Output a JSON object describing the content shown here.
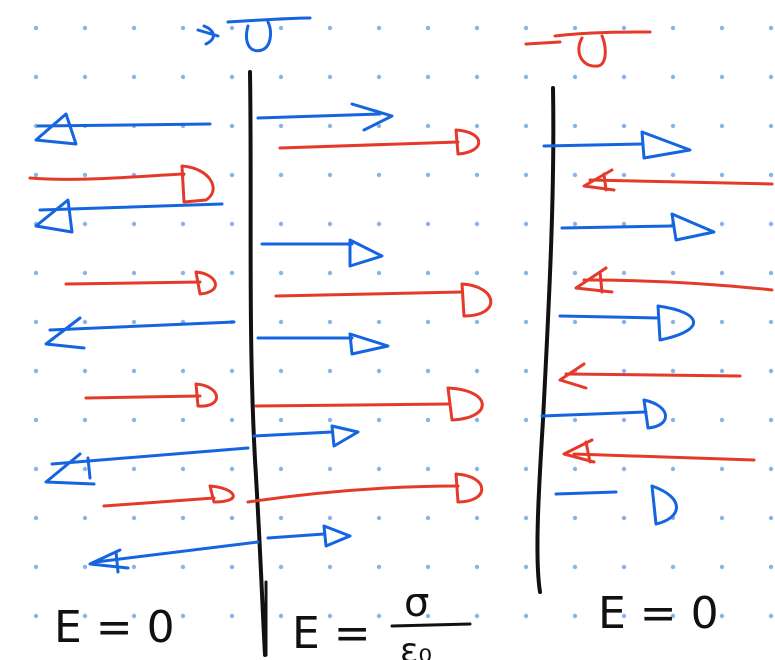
{
  "colors": {
    "background": "#ffffff",
    "grid_dot": "#8ab4e8",
    "positive_sheet": "#1565e0",
    "negative_sheet": "#e53a2a",
    "plate": "#111111"
  },
  "sheet_labels": {
    "positive": "+σ",
    "negative": "−σ"
  },
  "region_labels": {
    "left": "E = 0",
    "middle_lhs": "E =",
    "middle_num": "σ",
    "middle_den": "ε₀",
    "right": "E = 0"
  }
}
